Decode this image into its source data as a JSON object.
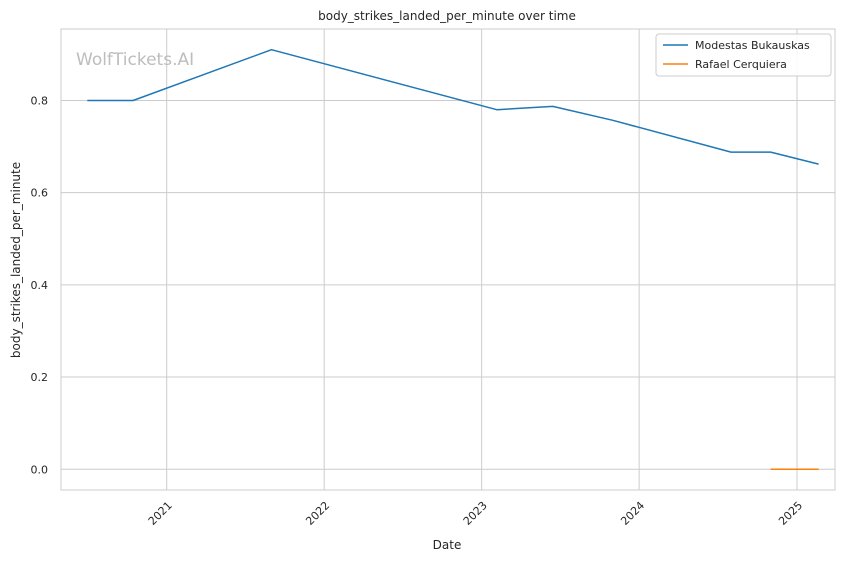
{
  "watermark": "WolfTickets.AI",
  "chart_data": {
    "type": "line",
    "title": "body_strikes_landed_per_minute over time",
    "xlabel": "Date",
    "ylabel": "body_strikes_landed_per_minute",
    "xlim": [
      "2020-05-01",
      "2025-03-30"
    ],
    "ylim": [
      -0.045,
      0.955
    ],
    "x_ticks": [
      "2021",
      "2022",
      "2023",
      "2024",
      "2025"
    ],
    "y_ticks": [
      "0.0",
      "0.2",
      "0.4",
      "0.6",
      "0.8"
    ],
    "grid": true,
    "legend_position": "top-right",
    "series": [
      {
        "name": "Modestas Bukauskas",
        "color": "#1f77b4",
        "points": [
          {
            "x": "2020-07-01",
            "y": 0.8
          },
          {
            "x": "2020-10-15",
            "y": 0.8
          },
          {
            "x": "2021-09-01",
            "y": 0.91
          },
          {
            "x": "2023-02-05",
            "y": 0.78
          },
          {
            "x": "2023-06-15",
            "y": 0.787
          },
          {
            "x": "2023-11-01",
            "y": 0.757
          },
          {
            "x": "2024-08-01",
            "y": 0.688
          },
          {
            "x": "2024-11-01",
            "y": 0.688
          },
          {
            "x": "2025-02-20",
            "y": 0.662
          }
        ]
      },
      {
        "name": "Rafael Cerquiera",
        "color": "#ff7f0e",
        "points": [
          {
            "x": "2024-11-01",
            "y": 0.0
          },
          {
            "x": "2025-02-20",
            "y": 0.0
          }
        ]
      }
    ]
  }
}
